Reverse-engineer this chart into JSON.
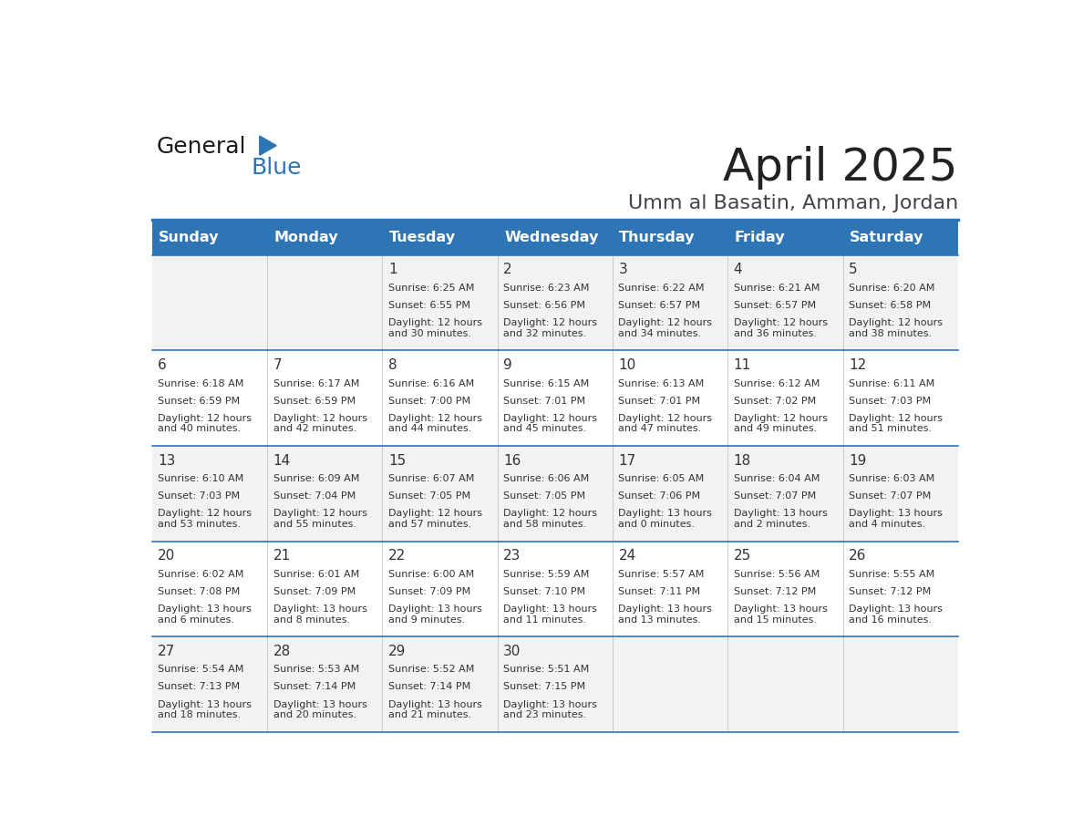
{
  "title": "April 2025",
  "subtitle": "Umm al Basatin, Amman, Jordan",
  "header_bg": "#2e75b6",
  "header_text_color": "#ffffff",
  "cell_bg_light": "#f2f2f2",
  "cell_bg_white": "#ffffff",
  "day_number_color": "#333333",
  "cell_text_color": "#333333",
  "line_color": "#2e75b6",
  "days_of_week": [
    "Sunday",
    "Monday",
    "Tuesday",
    "Wednesday",
    "Thursday",
    "Friday",
    "Saturday"
  ],
  "weeks": [
    [
      {
        "day": "",
        "sunrise": "",
        "sunset": "",
        "daylight": ""
      },
      {
        "day": "",
        "sunrise": "",
        "sunset": "",
        "daylight": ""
      },
      {
        "day": "1",
        "sunrise": "Sunrise: 6:25 AM",
        "sunset": "Sunset: 6:55 PM",
        "daylight": "Daylight: 12 hours\nand 30 minutes."
      },
      {
        "day": "2",
        "sunrise": "Sunrise: 6:23 AM",
        "sunset": "Sunset: 6:56 PM",
        "daylight": "Daylight: 12 hours\nand 32 minutes."
      },
      {
        "day": "3",
        "sunrise": "Sunrise: 6:22 AM",
        "sunset": "Sunset: 6:57 PM",
        "daylight": "Daylight: 12 hours\nand 34 minutes."
      },
      {
        "day": "4",
        "sunrise": "Sunrise: 6:21 AM",
        "sunset": "Sunset: 6:57 PM",
        "daylight": "Daylight: 12 hours\nand 36 minutes."
      },
      {
        "day": "5",
        "sunrise": "Sunrise: 6:20 AM",
        "sunset": "Sunset: 6:58 PM",
        "daylight": "Daylight: 12 hours\nand 38 minutes."
      }
    ],
    [
      {
        "day": "6",
        "sunrise": "Sunrise: 6:18 AM",
        "sunset": "Sunset: 6:59 PM",
        "daylight": "Daylight: 12 hours\nand 40 minutes."
      },
      {
        "day": "7",
        "sunrise": "Sunrise: 6:17 AM",
        "sunset": "Sunset: 6:59 PM",
        "daylight": "Daylight: 12 hours\nand 42 minutes."
      },
      {
        "day": "8",
        "sunrise": "Sunrise: 6:16 AM",
        "sunset": "Sunset: 7:00 PM",
        "daylight": "Daylight: 12 hours\nand 44 minutes."
      },
      {
        "day": "9",
        "sunrise": "Sunrise: 6:15 AM",
        "sunset": "Sunset: 7:01 PM",
        "daylight": "Daylight: 12 hours\nand 45 minutes."
      },
      {
        "day": "10",
        "sunrise": "Sunrise: 6:13 AM",
        "sunset": "Sunset: 7:01 PM",
        "daylight": "Daylight: 12 hours\nand 47 minutes."
      },
      {
        "day": "11",
        "sunrise": "Sunrise: 6:12 AM",
        "sunset": "Sunset: 7:02 PM",
        "daylight": "Daylight: 12 hours\nand 49 minutes."
      },
      {
        "day": "12",
        "sunrise": "Sunrise: 6:11 AM",
        "sunset": "Sunset: 7:03 PM",
        "daylight": "Daylight: 12 hours\nand 51 minutes."
      }
    ],
    [
      {
        "day": "13",
        "sunrise": "Sunrise: 6:10 AM",
        "sunset": "Sunset: 7:03 PM",
        "daylight": "Daylight: 12 hours\nand 53 minutes."
      },
      {
        "day": "14",
        "sunrise": "Sunrise: 6:09 AM",
        "sunset": "Sunset: 7:04 PM",
        "daylight": "Daylight: 12 hours\nand 55 minutes."
      },
      {
        "day": "15",
        "sunrise": "Sunrise: 6:07 AM",
        "sunset": "Sunset: 7:05 PM",
        "daylight": "Daylight: 12 hours\nand 57 minutes."
      },
      {
        "day": "16",
        "sunrise": "Sunrise: 6:06 AM",
        "sunset": "Sunset: 7:05 PM",
        "daylight": "Daylight: 12 hours\nand 58 minutes."
      },
      {
        "day": "17",
        "sunrise": "Sunrise: 6:05 AM",
        "sunset": "Sunset: 7:06 PM",
        "daylight": "Daylight: 13 hours\nand 0 minutes."
      },
      {
        "day": "18",
        "sunrise": "Sunrise: 6:04 AM",
        "sunset": "Sunset: 7:07 PM",
        "daylight": "Daylight: 13 hours\nand 2 minutes."
      },
      {
        "day": "19",
        "sunrise": "Sunrise: 6:03 AM",
        "sunset": "Sunset: 7:07 PM",
        "daylight": "Daylight: 13 hours\nand 4 minutes."
      }
    ],
    [
      {
        "day": "20",
        "sunrise": "Sunrise: 6:02 AM",
        "sunset": "Sunset: 7:08 PM",
        "daylight": "Daylight: 13 hours\nand 6 minutes."
      },
      {
        "day": "21",
        "sunrise": "Sunrise: 6:01 AM",
        "sunset": "Sunset: 7:09 PM",
        "daylight": "Daylight: 13 hours\nand 8 minutes."
      },
      {
        "day": "22",
        "sunrise": "Sunrise: 6:00 AM",
        "sunset": "Sunset: 7:09 PM",
        "daylight": "Daylight: 13 hours\nand 9 minutes."
      },
      {
        "day": "23",
        "sunrise": "Sunrise: 5:59 AM",
        "sunset": "Sunset: 7:10 PM",
        "daylight": "Daylight: 13 hours\nand 11 minutes."
      },
      {
        "day": "24",
        "sunrise": "Sunrise: 5:57 AM",
        "sunset": "Sunset: 7:11 PM",
        "daylight": "Daylight: 13 hours\nand 13 minutes."
      },
      {
        "day": "25",
        "sunrise": "Sunrise: 5:56 AM",
        "sunset": "Sunset: 7:12 PM",
        "daylight": "Daylight: 13 hours\nand 15 minutes."
      },
      {
        "day": "26",
        "sunrise": "Sunrise: 5:55 AM",
        "sunset": "Sunset: 7:12 PM",
        "daylight": "Daylight: 13 hours\nand 16 minutes."
      }
    ],
    [
      {
        "day": "27",
        "sunrise": "Sunrise: 5:54 AM",
        "sunset": "Sunset: 7:13 PM",
        "daylight": "Daylight: 13 hours\nand 18 minutes."
      },
      {
        "day": "28",
        "sunrise": "Sunrise: 5:53 AM",
        "sunset": "Sunset: 7:14 PM",
        "daylight": "Daylight: 13 hours\nand 20 minutes."
      },
      {
        "day": "29",
        "sunrise": "Sunrise: 5:52 AM",
        "sunset": "Sunset: 7:14 PM",
        "daylight": "Daylight: 13 hours\nand 21 minutes."
      },
      {
        "day": "30",
        "sunrise": "Sunrise: 5:51 AM",
        "sunset": "Sunset: 7:15 PM",
        "daylight": "Daylight: 13 hours\nand 23 minutes."
      },
      {
        "day": "",
        "sunrise": "",
        "sunset": "",
        "daylight": ""
      },
      {
        "day": "",
        "sunrise": "",
        "sunset": "",
        "daylight": ""
      },
      {
        "day": "",
        "sunrise": "",
        "sunset": "",
        "daylight": ""
      }
    ]
  ]
}
